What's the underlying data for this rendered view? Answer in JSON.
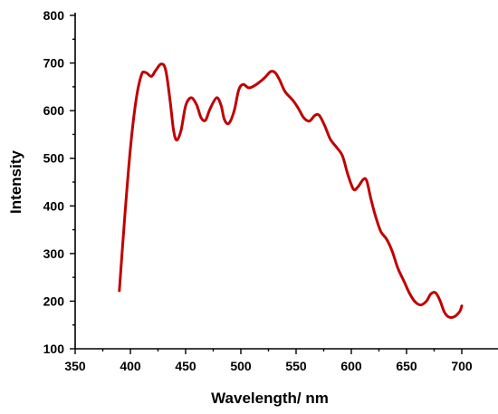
{
  "chart_data": {
    "type": "line",
    "title": "",
    "xlabel": "Wavelength/ nm",
    "ylabel": "Intensity",
    "xlim": [
      350,
      700
    ],
    "ylim": [
      100,
      800
    ],
    "x_ticks": [
      350,
      400,
      450,
      500,
      550,
      600,
      650,
      700
    ],
    "y_ticks": [
      100,
      200,
      300,
      400,
      500,
      600,
      700,
      800
    ],
    "grid": false,
    "legend": "none",
    "series": [
      {
        "color": "#c00000",
        "points": [
          [
            390,
            222
          ],
          [
            395,
            380
          ],
          [
            400,
            520
          ],
          [
            405,
            620
          ],
          [
            410,
            675
          ],
          [
            414,
            680
          ],
          [
            419,
            672
          ],
          [
            423,
            685
          ],
          [
            428,
            698
          ],
          [
            432,
            685
          ],
          [
            436,
            620
          ],
          [
            439,
            560
          ],
          [
            442,
            538
          ],
          [
            446,
            560
          ],
          [
            450,
            610
          ],
          [
            455,
            627
          ],
          [
            460,
            612
          ],
          [
            464,
            585
          ],
          [
            468,
            580
          ],
          [
            472,
            603
          ],
          [
            478,
            627
          ],
          [
            482,
            612
          ],
          [
            485,
            582
          ],
          [
            489,
            573
          ],
          [
            494,
            600
          ],
          [
            498,
            643
          ],
          [
            502,
            655
          ],
          [
            507,
            648
          ],
          [
            512,
            652
          ],
          [
            517,
            660
          ],
          [
            522,
            670
          ],
          [
            527,
            682
          ],
          [
            531,
            680
          ],
          [
            535,
            665
          ],
          [
            540,
            640
          ],
          [
            547,
            622
          ],
          [
            552,
            605
          ],
          [
            557,
            585
          ],
          [
            562,
            578
          ],
          [
            567,
            590
          ],
          [
            571,
            590
          ],
          [
            576,
            568
          ],
          [
            581,
            540
          ],
          [
            587,
            522
          ],
          [
            592,
            505
          ],
          [
            597,
            465
          ],
          [
            602,
            435
          ],
          [
            606,
            440
          ],
          [
            611,
            456
          ],
          [
            614,
            452
          ],
          [
            618,
            412
          ],
          [
            623,
            370
          ],
          [
            627,
            345
          ],
          [
            632,
            330
          ],
          [
            637,
            305
          ],
          [
            642,
            270
          ],
          [
            648,
            240
          ],
          [
            653,
            215
          ],
          [
            658,
            198
          ],
          [
            663,
            192
          ],
          [
            668,
            200
          ],
          [
            672,
            215
          ],
          [
            676,
            218
          ],
          [
            680,
            203
          ],
          [
            684,
            178
          ],
          [
            688,
            167
          ],
          [
            693,
            167
          ],
          [
            698,
            178
          ],
          [
            700,
            190
          ]
        ]
      }
    ]
  }
}
